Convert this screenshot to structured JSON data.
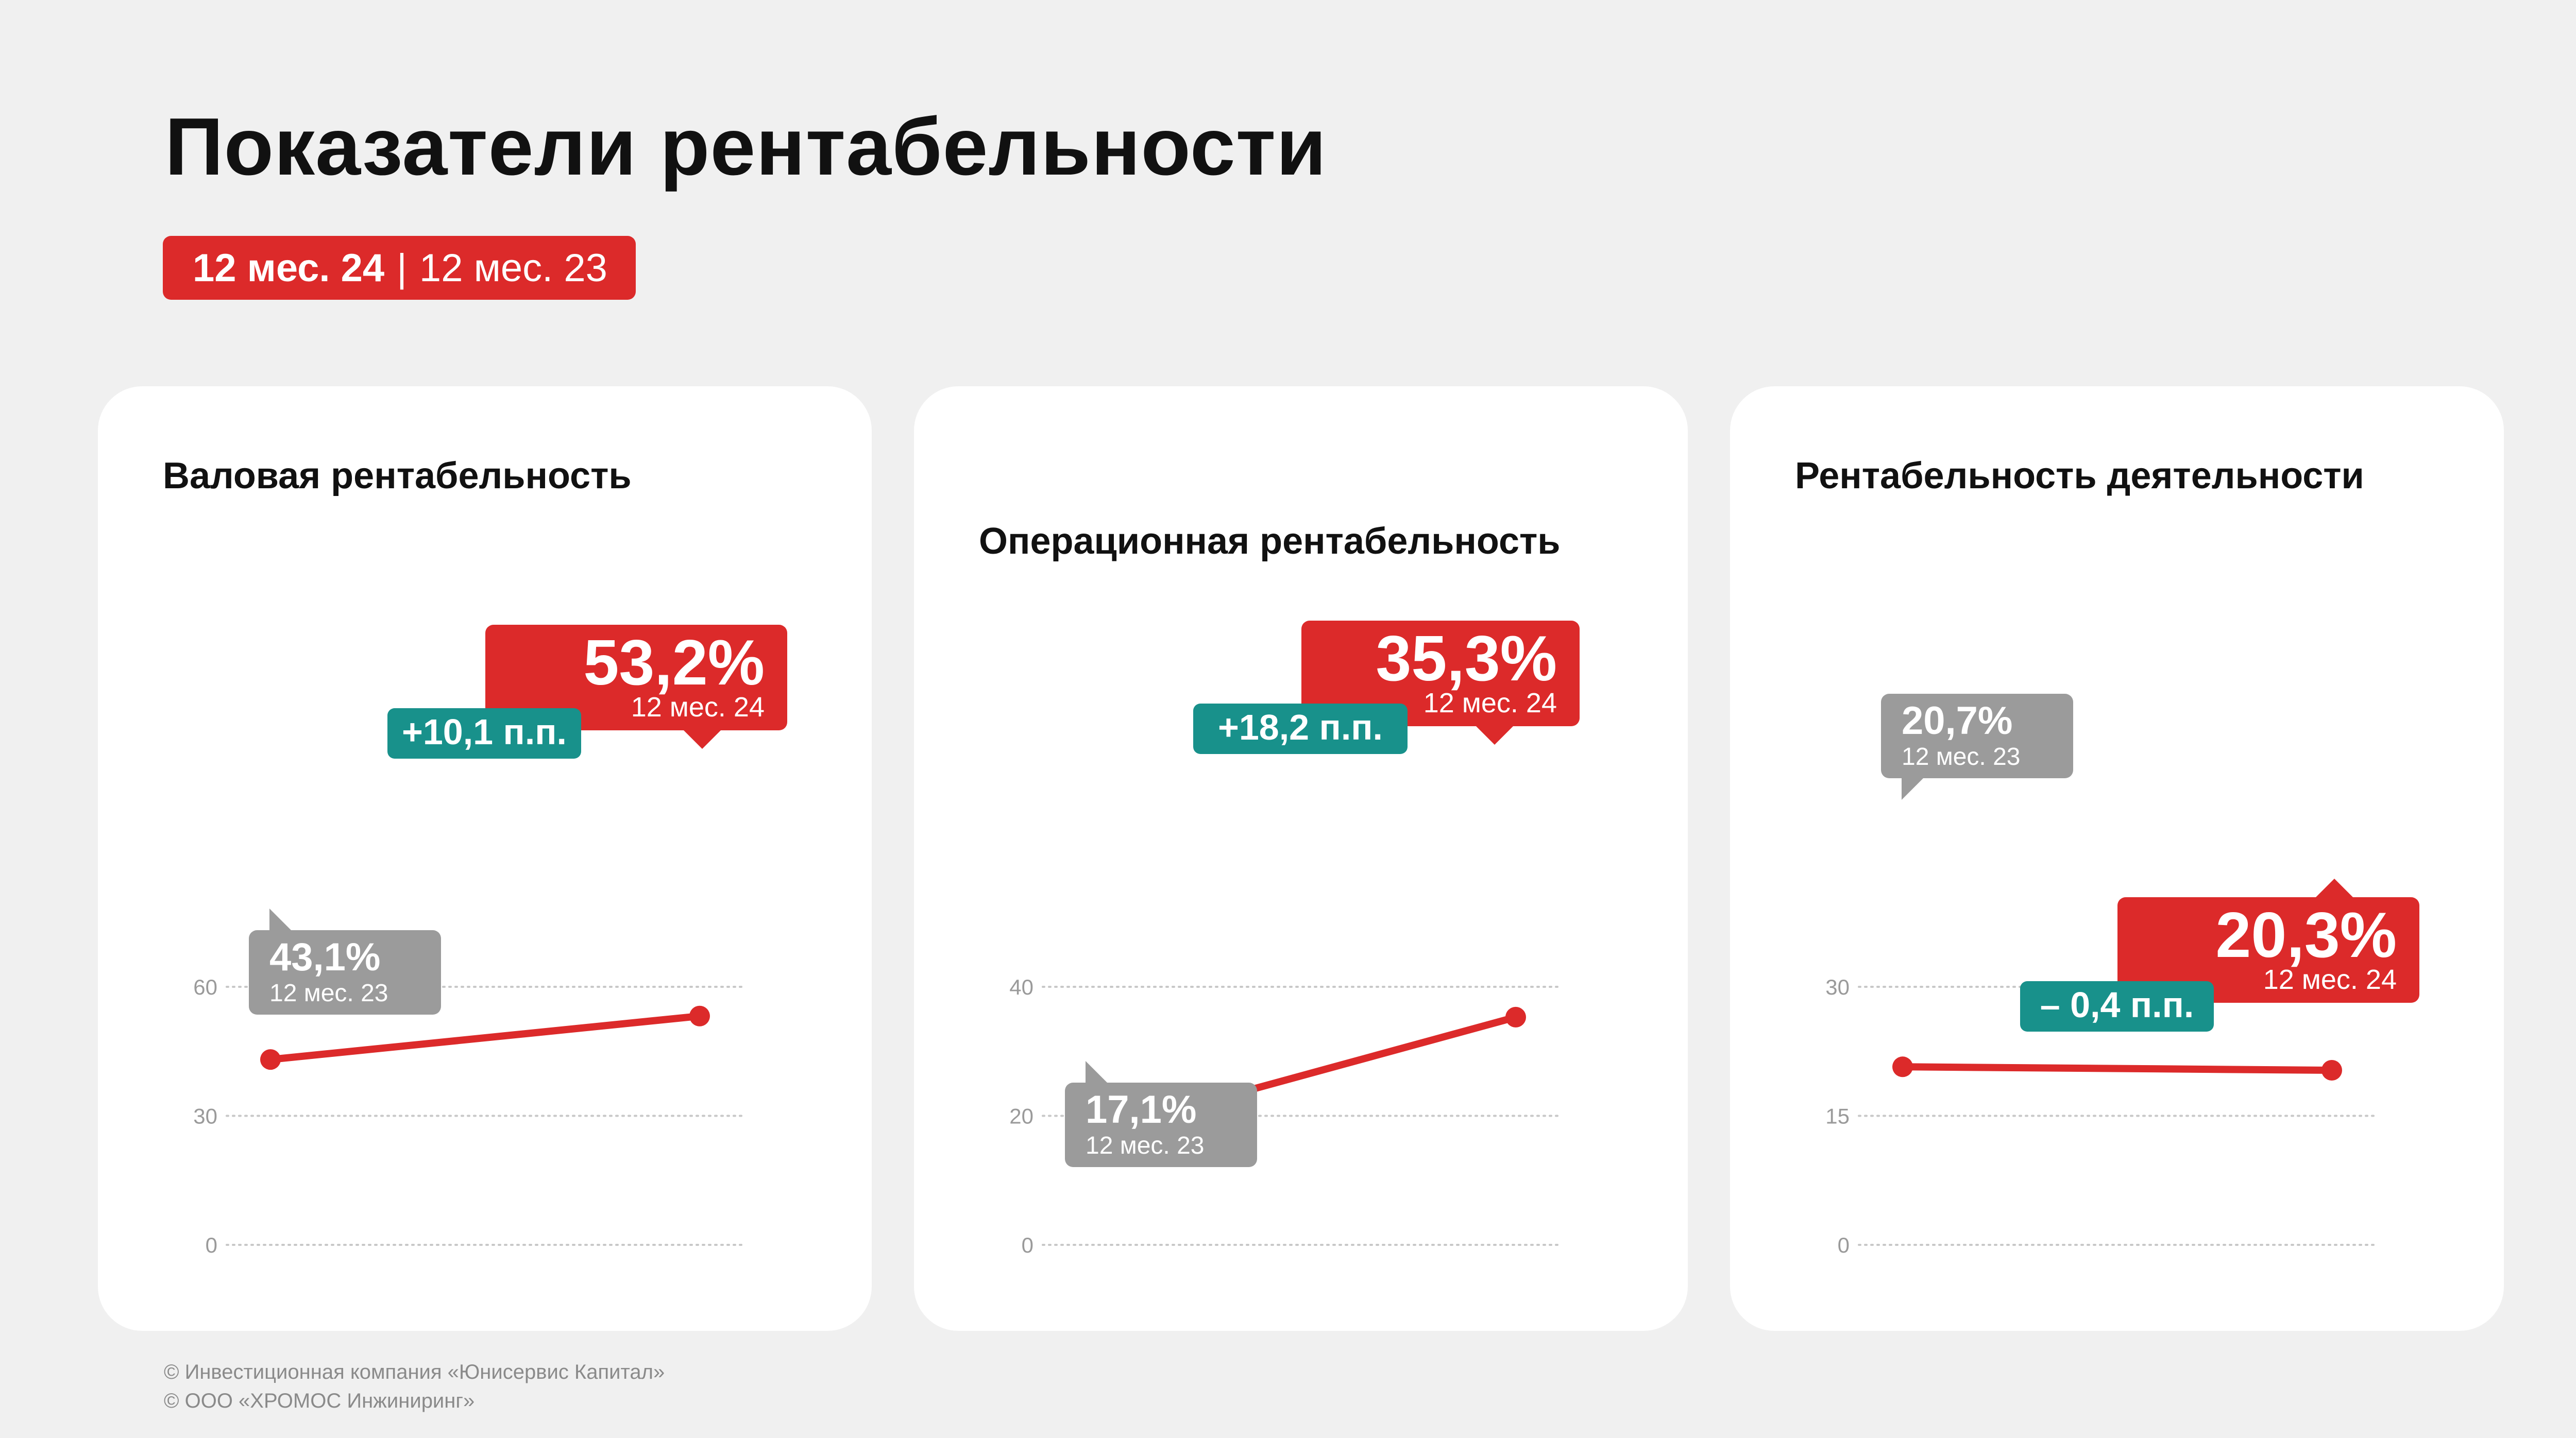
{
  "title": "Показатели рентабельности",
  "period_toggle": {
    "active": "12 мес. 24",
    "separator": "|",
    "inactive": "12 мес. 23"
  },
  "colors": {
    "accent": "#dc2a2a",
    "delta": "#18918b",
    "previous": "#9b9b9b",
    "background": "#f0f0f0"
  },
  "footer": {
    "line1": "© Инвестиционная компания «Юнисервис Капитал»",
    "line2": "© ООО «ХРОМОС Инжиниринг»"
  },
  "chart_data": [
    {
      "type": "line",
      "title": "Валовая рентабельность",
      "x": [
        "12 мес. 23",
        "12 мес. 24"
      ],
      "values": [
        43.1,
        53.2
      ],
      "ylim": [
        0,
        60
      ],
      "yticks": [
        0,
        30,
        60
      ],
      "grid": true,
      "previous_label": {
        "value": "43,1%",
        "period": "12 мес. 23"
      },
      "current_label": {
        "value": "53,2%",
        "period": "12 мес. 24"
      },
      "delta": "+10,1 п.п."
    },
    {
      "type": "line",
      "title": "Операционная рентабельность",
      "x": [
        "12 мес. 23",
        "12 мес. 24"
      ],
      "values": [
        17.1,
        35.3
      ],
      "ylim": [
        0,
        40
      ],
      "yticks": [
        0,
        20,
        40
      ],
      "grid": true,
      "previous_label": {
        "value": "17,1%",
        "period": "12 мес. 23"
      },
      "current_label": {
        "value": "35,3%",
        "period": "12 мес. 24"
      },
      "delta": "+18,2 п.п."
    },
    {
      "type": "line",
      "title": "Рентабельность деятельности",
      "x": [
        "12 мес. 23",
        "12 мес. 24"
      ],
      "values": [
        20.7,
        20.3
      ],
      "ylim": [
        0,
        30
      ],
      "yticks": [
        0,
        15,
        30
      ],
      "grid": true,
      "previous_label": {
        "value": "20,7%",
        "period": "12 мес. 23"
      },
      "current_label": {
        "value": "20,3%",
        "period": "12 мес. 24"
      },
      "delta": "– 0,4 п.п."
    }
  ]
}
